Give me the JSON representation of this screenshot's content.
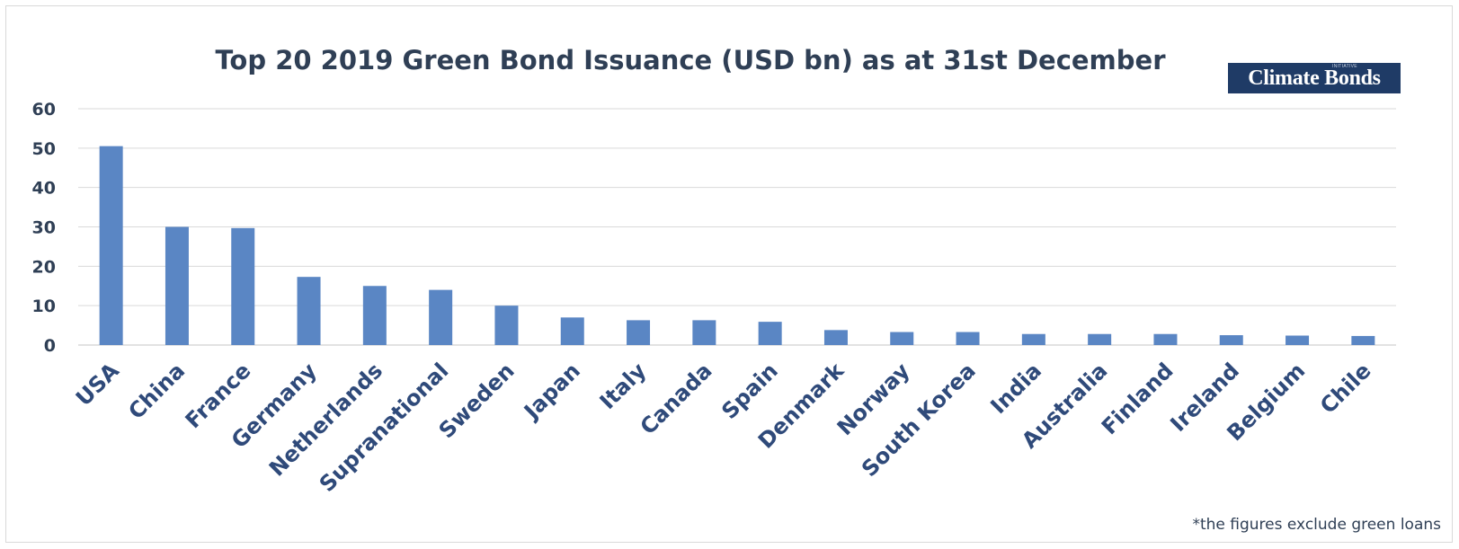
{
  "chart_data": {
    "type": "bar",
    "title": "Top 20 2019 Green Bond Issuance (USD bn) as at 31st December",
    "categories": [
      "USA",
      "China",
      "France",
      "Germany",
      "Netherlands",
      "Supranational",
      "Sweden",
      "Japan",
      "Italy",
      "Canada",
      "Spain",
      "Denmark",
      "Norway",
      "South Korea",
      "India",
      "Australia",
      "Finland",
      "Ireland",
      "Belgium",
      "Chile"
    ],
    "values": [
      50.5,
      30.0,
      29.7,
      17.3,
      15.0,
      14.0,
      10.0,
      7.0,
      6.3,
      6.3,
      5.9,
      3.8,
      3.3,
      3.3,
      2.8,
      2.8,
      2.8,
      2.5,
      2.4,
      2.3
    ],
    "ylim": [
      0,
      60
    ],
    "yticks": [
      "0",
      "10",
      "20",
      "30",
      "40",
      "50",
      "60"
    ],
    "grid": true,
    "bar_color": "#5a86c4",
    "grid_color": "#d9d9d9",
    "xlabel": "",
    "ylabel": ""
  },
  "logo": {
    "text": "Climate Bonds",
    "superscript": "INITIATIVE",
    "background": "#1f3b66"
  },
  "footnote": "*the figures exclude green loans"
}
